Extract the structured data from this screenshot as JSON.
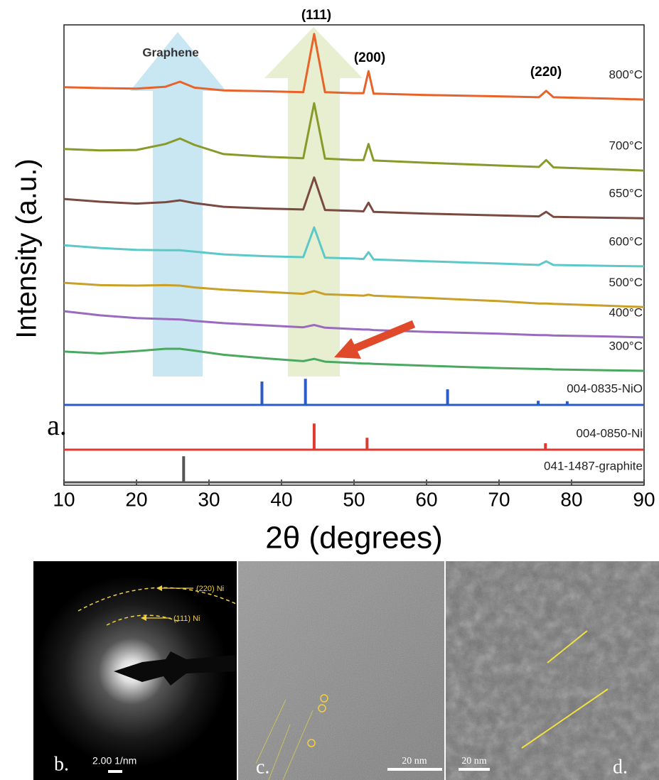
{
  "chart_data": {
    "type": "line",
    "y_label": "Intensity (a.u.)",
    "x_label": "2θ (degrees)",
    "panel_label": "a.",
    "annotations": [
      "(111)",
      "(200)",
      "(220)",
      "Graphene"
    ],
    "xlim": [
      10,
      90
    ],
    "xticks": [
      10,
      20,
      30,
      40,
      50,
      60,
      70,
      80,
      90
    ],
    "ylim": [
      0,
      100
    ],
    "x": [
      10,
      15,
      20,
      24,
      26,
      28,
      32,
      38,
      43,
      44.5,
      46,
      50,
      51.3,
      52,
      52.7,
      60,
      70,
      75.5,
      76.5,
      77.5,
      85,
      90
    ],
    "series": [
      {
        "name": "800°C",
        "color": "#e8632a",
        "values": [
          86.4,
          86.2,
          86.1,
          86.5,
          87.6,
          86.3,
          85.7,
          85.5,
          85.3,
          98.0,
          85.3,
          85.1,
          85.1,
          89.9,
          85.0,
          84.7,
          84.4,
          84.2,
          85.6,
          84.2,
          83.9,
          83.7
        ]
      },
      {
        "name": "700°C",
        "color": "#8a9a2a",
        "values": [
          72.9,
          72.6,
          72.7,
          74.0,
          75.2,
          73.8,
          71.8,
          71.2,
          70.9,
          82.9,
          70.8,
          70.5,
          70.5,
          74.0,
          70.4,
          69.9,
          69.3,
          69.0,
          70.5,
          68.9,
          68.5,
          68.2
        ]
      },
      {
        "name": "650°C",
        "color": "#7a4a40",
        "values": [
          62.0,
          61.4,
          61.0,
          61.3,
          61.7,
          61.1,
          60.3,
          59.9,
          59.7,
          66.7,
          59.6,
          59.4,
          59.3,
          61.2,
          59.2,
          58.8,
          58.4,
          58.2,
          59.2,
          58.1,
          57.9,
          57.8
        ]
      },
      {
        "name": "600°C",
        "color": "#5cc8c8",
        "values": [
          51.9,
          51.3,
          50.9,
          50.8,
          50.8,
          50.5,
          49.9,
          49.5,
          49.3,
          55.8,
          49.2,
          49.0,
          48.9,
          50.4,
          48.8,
          48.4,
          47.9,
          47.6,
          48.4,
          47.6,
          47.4,
          47.3
        ]
      },
      {
        "name": "500°C",
        "color": "#c9a028",
        "values": [
          43.7,
          43.2,
          43.1,
          43.2,
          43.1,
          42.7,
          42.2,
          41.7,
          41.3,
          41.9,
          41.2,
          41.0,
          40.9,
          41.1,
          40.9,
          40.4,
          39.7,
          39.2,
          39.2,
          39.1,
          38.7,
          38.4
        ]
      },
      {
        "name": "400°C",
        "color": "#9a6ac0",
        "values": [
          37.5,
          36.6,
          36.0,
          35.8,
          35.7,
          35.4,
          34.9,
          34.4,
          34.0,
          34.5,
          33.9,
          33.6,
          33.5,
          33.5,
          33.4,
          33.0,
          32.6,
          32.3,
          32.3,
          32.2,
          32.0,
          31.8
        ]
      },
      {
        "name": "300°C",
        "color": "#4aa860",
        "values": [
          28.7,
          28.3,
          28.8,
          29.3,
          29.3,
          28.9,
          28.0,
          27.2,
          26.6,
          27.1,
          26.5,
          26.2,
          26.1,
          26.1,
          26.0,
          25.6,
          25.1,
          24.9,
          24.9,
          24.8,
          24.6,
          24.5
        ]
      }
    ],
    "references": [
      {
        "name": "004-0835-NiO",
        "color": "#2a5cc8",
        "x": [
          37.3,
          43.3,
          62.9,
          75.4,
          79.4
        ],
        "values": [
          5.1,
          5.7,
          3.4,
          0.9,
          0.8
        ]
      },
      {
        "name": "004-0850-Ni",
        "color": "#e03a30",
        "x": [
          44.5,
          51.8,
          76.4
        ],
        "values": [
          5.7,
          2.6,
          1.4
        ]
      },
      {
        "name": "041-1487-graphite",
        "color": "#555555",
        "x": [
          26.5
        ],
        "values": [
          5.7
        ]
      }
    ]
  },
  "panels": {
    "b": {
      "label": "b.",
      "scale_bar": "2.00 1/nm",
      "rings": [
        "(220) Ni",
        "(111) Ni"
      ]
    },
    "c": {
      "label": "c.",
      "scale_bar": "20 nm"
    },
    "d": {
      "label": "d.",
      "scale_bar": "20 nm"
    }
  }
}
